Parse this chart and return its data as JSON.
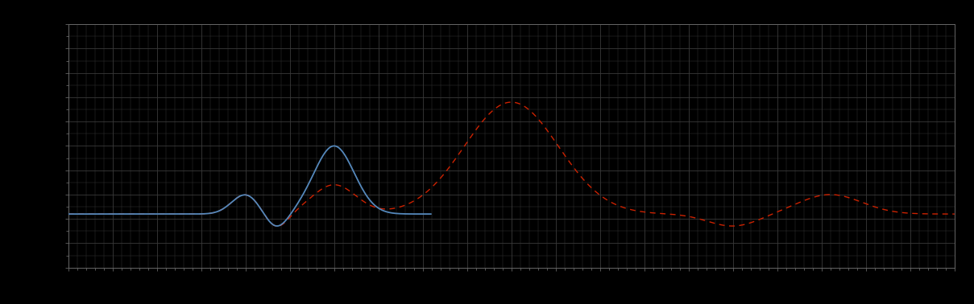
{
  "background_color": "#000000",
  "plot_bg_color": "#000000",
  "grid_color": "#3a3a3a",
  "fig_width": 12.09,
  "fig_height": 3.78,
  "dpi": 100,
  "blue_line_color": "#5588bb",
  "red_line_color": "#cc2200",
  "xlim": [
    0,
    100
  ],
  "ylim": [
    0,
    100
  ],
  "spine_color": "#666666",
  "tick_color": "#666666",
  "x_major_interval": 5,
  "x_minor_interval": 1,
  "y_major_interval": 10,
  "y_minor_interval": 5
}
